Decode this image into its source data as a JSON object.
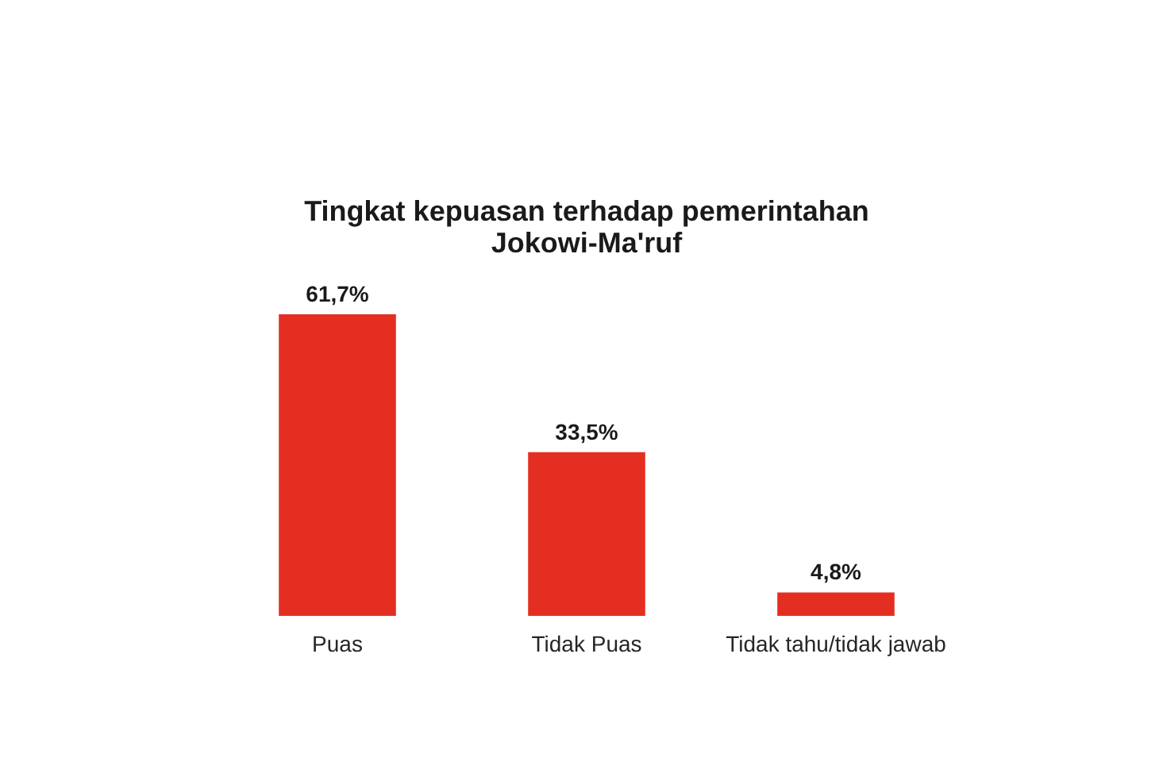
{
  "chart_data": {
    "type": "bar",
    "title": "Tingkat kepuasan terhadap pemerintahan Jokowi-Ma'ruf",
    "categories": [
      "Puas",
      "Tidak Puas",
      "Tidak tahu/tidak jawab"
    ],
    "values": [
      61.7,
      33.5,
      4.8
    ],
    "value_labels": [
      "61,7%",
      "33,5%",
      "4,8%"
    ],
    "color": "#e52e22",
    "tick_labels": "x"
  }
}
